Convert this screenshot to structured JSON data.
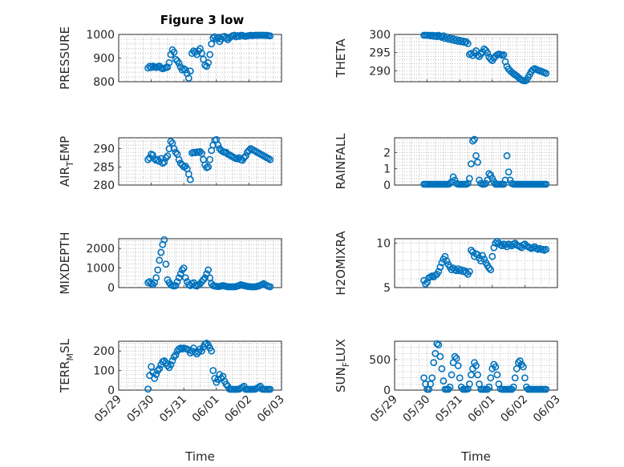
{
  "figure_title": "Figure 3 low",
  "colors": {
    "marker": "#0072BD",
    "axis": "#262626",
    "grid": "#b0b0b0"
  },
  "chart_data": [
    {
      "type": "scatter",
      "ylabel": "PRESSURE",
      "ylabel_sub": "",
      "xlim": [
        "05/29",
        "06/03"
      ],
      "ylim": [
        800,
        1000
      ],
      "yticks": [
        800,
        900,
        1000
      ],
      "xtick_labels": [],
      "xlabel": "",
      "grid": true,
      "x": [
        0.9,
        0.95,
        1.0,
        1.05,
        1.1,
        1.15,
        1.2,
        1.25,
        1.3,
        1.35,
        1.4,
        1.45,
        1.5,
        1.55,
        1.6,
        1.65,
        1.7,
        1.75,
        1.8,
        1.85,
        1.9,
        1.95,
        2.0,
        2.05,
        2.1,
        2.15,
        2.2,
        2.25,
        2.3,
        2.35,
        2.4,
        2.45,
        2.5,
        2.55,
        2.6,
        2.65,
        2.7,
        2.75,
        2.8,
        2.85,
        2.9,
        2.95,
        3.0,
        3.05,
        3.1,
        3.15,
        3.2,
        3.25,
        3.3,
        3.35,
        3.4,
        3.45,
        3.5,
        3.55,
        3.6,
        3.65,
        3.7,
        3.75,
        3.8,
        3.85,
        3.9,
        3.95,
        4.0,
        4.05,
        4.1,
        4.15,
        4.2,
        4.25,
        4.3,
        4.35,
        4.4,
        4.45,
        4.5,
        4.55,
        4.6,
        4.65
      ],
      "y": [
        858,
        865,
        860,
        866,
        862,
        860,
        864,
        866,
        858,
        855,
        857,
        860,
        862,
        880,
        915,
        935,
        925,
        895,
        888,
        878,
        862,
        850,
        855,
        850,
        835,
        815,
        845,
        920,
        930,
        925,
        915,
        930,
        940,
        920,
        895,
        870,
        865,
        880,
        915,
        960,
        985,
        990,
        980,
        985,
        970,
        980,
        990,
        992,
        985,
        978,
        985,
        990,
        995,
        998,
        990,
        995,
        992,
        998,
        996,
        993,
        992,
        994,
        995,
        997,
        995,
        996,
        998,
        1000,
        999,
        997,
        998,
        997,
        996,
        998,
        995,
        994
      ]
    },
    {
      "type": "scatter",
      "ylabel": "THETA",
      "ylabel_sub": "",
      "xlim": [
        "05/29",
        "06/03"
      ],
      "ylim": [
        287,
        300
      ],
      "yticks": [
        290,
        295,
        300
      ],
      "xtick_labels": [],
      "xlabel": "",
      "grid": true,
      "x": [
        0.9,
        0.95,
        1.0,
        1.05,
        1.1,
        1.15,
        1.2,
        1.25,
        1.3,
        1.35,
        1.4,
        1.45,
        1.5,
        1.55,
        1.6,
        1.65,
        1.7,
        1.75,
        1.8,
        1.85,
        1.9,
        1.95,
        2.0,
        2.05,
        2.1,
        2.15,
        2.2,
        2.25,
        2.3,
        2.35,
        2.4,
        2.45,
        2.5,
        2.55,
        2.6,
        2.65,
        2.7,
        2.75,
        2.8,
        2.85,
        2.9,
        2.95,
        3.0,
        3.05,
        3.1,
        3.15,
        3.2,
        3.25,
        3.3,
        3.35,
        3.4,
        3.45,
        3.5,
        3.55,
        3.6,
        3.65,
        3.7,
        3.75,
        3.8,
        3.85,
        3.9,
        3.95,
        4.0,
        4.05,
        4.1,
        4.15,
        4.2,
        4.25,
        4.3,
        4.35,
        4.4,
        4.45,
        4.5,
        4.55,
        4.6,
        4.65
      ],
      "y": [
        300,
        300.2,
        299.8,
        300.1,
        299.6,
        299.9,
        299.5,
        299.7,
        299.4,
        299.8,
        299.5,
        299.2,
        299.6,
        298.9,
        299.3,
        298.7,
        299.0,
        298.5,
        298.8,
        298.3,
        298.6,
        298.1,
        298.4,
        298.0,
        298.2,
        297.8,
        298.0,
        297.5,
        294.5,
        294.8,
        294.2,
        294.9,
        295.5,
        294.3,
        293.9,
        294.6,
        295.2,
        296.0,
        295.6,
        294.9,
        293.8,
        293.2,
        292.8,
        293.5,
        294.0,
        294.4,
        294.6,
        294.5,
        294.3,
        294.4,
        292.5,
        291.2,
        290.5,
        290.0,
        289.6,
        289.2,
        288.9,
        288.6,
        288.2,
        287.8,
        287.5,
        287.3,
        287.0,
        287.4,
        288.2,
        289.0,
        289.8,
        290.3,
        290.6,
        290.4,
        290.2,
        290.0,
        289.9,
        289.7,
        289.5,
        289.3
      ]
    },
    {
      "type": "scatter",
      "ylabel": "AIR",
      "ylabel_sub": "T",
      "ylabel_suffix": "EMP",
      "xlim": [
        "05/29",
        "06/03"
      ],
      "ylim": [
        280,
        293
      ],
      "yticks": [
        280,
        285,
        290
      ],
      "xtick_labels": [],
      "xlabel": "",
      "grid": true,
      "x": [
        0.9,
        0.95,
        1.0,
        1.05,
        1.1,
        1.15,
        1.2,
        1.25,
        1.3,
        1.35,
        1.4,
        1.45,
        1.5,
        1.55,
        1.6,
        1.65,
        1.7,
        1.75,
        1.8,
        1.85,
        1.9,
        1.95,
        2.0,
        2.05,
        2.1,
        2.15,
        2.2,
        2.25,
        2.3,
        2.35,
        2.4,
        2.45,
        2.5,
        2.55,
        2.6,
        2.65,
        2.7,
        2.75,
        2.8,
        2.85,
        2.9,
        2.95,
        3.0,
        3.05,
        3.1,
        3.15,
        3.2,
        3.25,
        3.3,
        3.35,
        3.4,
        3.45,
        3.5,
        3.55,
        3.6,
        3.65,
        3.7,
        3.75,
        3.8,
        3.85,
        3.9,
        3.95,
        4.0,
        4.05,
        4.1,
        4.15,
        4.2,
        4.25,
        4.3,
        4.35,
        4.4,
        4.45,
        4.5,
        4.55,
        4.6,
        4.65
      ],
      "y": [
        287,
        287.5,
        288.5,
        288.2,
        287.2,
        286.8,
        287.0,
        286.5,
        287.3,
        286.0,
        286.3,
        287.5,
        288.0,
        290.0,
        292.0,
        291.5,
        290.0,
        289.0,
        288.5,
        287.0,
        286.0,
        285.5,
        285.0,
        285.2,
        284.5,
        283.0,
        281.5,
        288.8,
        289.0,
        288.9,
        289.1,
        289.0,
        289.2,
        288.7,
        287.0,
        285.5,
        284.8,
        285.0,
        287.0,
        289.5,
        291.0,
        292.3,
        292.5,
        291.0,
        290.0,
        289.5,
        289.2,
        289.0,
        289.0,
        288.5,
        288.3,
        288.0,
        287.8,
        287.5,
        287.3,
        287.2,
        287.5,
        287.0,
        286.8,
        287.5,
        288.0,
        289.0,
        289.5,
        290.0,
        289.8,
        289.5,
        289.3,
        289.0,
        288.8,
        288.5,
        288.3,
        288.0,
        287.8,
        287.5,
        287.3,
        287.0
      ]
    },
    {
      "type": "scatter",
      "ylabel": "RAINFALL",
      "ylabel_sub": "",
      "xlim": [
        "05/29",
        "06/03"
      ],
      "ylim": [
        0,
        2.9
      ],
      "yticks": [
        0,
        1,
        2
      ],
      "xtick_labels": [],
      "xlabel": "",
      "grid": true,
      "x": [
        0.9,
        0.95,
        1.0,
        1.05,
        1.1,
        1.15,
        1.2,
        1.25,
        1.3,
        1.35,
        1.4,
        1.45,
        1.5,
        1.55,
        1.6,
        1.65,
        1.7,
        1.75,
        1.8,
        1.85,
        1.9,
        1.95,
        2.0,
        2.05,
        2.1,
        2.15,
        2.2,
        2.25,
        2.3,
        2.35,
        2.4,
        2.45,
        2.5,
        2.55,
        2.6,
        2.65,
        2.7,
        2.75,
        2.8,
        2.85,
        2.9,
        2.95,
        3.0,
        3.05,
        3.1,
        3.15,
        3.2,
        3.25,
        3.3,
        3.35,
        3.4,
        3.45,
        3.5,
        3.55,
        3.6,
        3.65,
        3.7,
        3.75,
        3.8,
        3.85,
        3.9,
        3.95,
        4.0,
        4.05,
        4.1,
        4.15,
        4.2,
        4.25,
        4.3,
        4.35,
        4.4,
        4.45,
        4.5,
        4.55,
        4.6,
        4.65
      ],
      "y": [
        0,
        0,
        0,
        0,
        0,
        0,
        0,
        0,
        0,
        0,
        0,
        0,
        0,
        0,
        0,
        0,
        0.1,
        0.2,
        0.5,
        0.3,
        0.1,
        0,
        0,
        0,
        0,
        0,
        0,
        0.1,
        0.4,
        1.3,
        2.7,
        2.8,
        1.8,
        1.4,
        0.3,
        0.1,
        0,
        0,
        0.1,
        0.3,
        0.7,
        0.6,
        0.4,
        0.2,
        0,
        0,
        0,
        0,
        0,
        0,
        0.3,
        1.8,
        0.8,
        0.3,
        0.1,
        0,
        0,
        0,
        0,
        0,
        0,
        0,
        0,
        0,
        0,
        0,
        0,
        0,
        0,
        0,
        0,
        0,
        0,
        0,
        0,
        0
      ]
    },
    {
      "type": "scatter",
      "ylabel": "MIXDEPTH",
      "ylabel_sub": "",
      "xlim": [
        "05/29",
        "06/03"
      ],
      "ylim": [
        0,
        2500
      ],
      "yticks": [
        0,
        1000,
        2000
      ],
      "xtick_labels": [],
      "xlabel": "",
      "grid": true,
      "x": [
        0.9,
        0.95,
        1.0,
        1.05,
        1.1,
        1.15,
        1.2,
        1.25,
        1.3,
        1.35,
        1.4,
        1.45,
        1.5,
        1.55,
        1.6,
        1.65,
        1.7,
        1.75,
        1.8,
        1.85,
        1.9,
        1.95,
        2.0,
        2.05,
        2.1,
        2.15,
        2.2,
        2.25,
        2.3,
        2.35,
        2.4,
        2.45,
        2.5,
        2.55,
        2.6,
        2.65,
        2.7,
        2.75,
        2.8,
        2.85,
        2.9,
        2.95,
        3.0,
        3.05,
        3.1,
        3.15,
        3.2,
        3.25,
        3.3,
        3.35,
        3.4,
        3.45,
        3.5,
        3.55,
        3.6,
        3.65,
        3.7,
        3.75,
        3.8,
        3.85,
        3.9,
        3.95,
        4.0,
        4.05,
        4.1,
        4.15,
        4.2,
        4.25,
        4.3,
        4.35,
        4.4,
        4.45,
        4.5,
        4.55,
        4.6,
        4.65
      ],
      "y": [
        250,
        300,
        200,
        150,
        250,
        500,
        900,
        1400,
        1800,
        2200,
        2450,
        1200,
        400,
        250,
        150,
        100,
        80,
        100,
        300,
        500,
        700,
        900,
        1000,
        500,
        300,
        150,
        100,
        200,
        250,
        100,
        80,
        150,
        200,
        300,
        400,
        500,
        700,
        900,
        500,
        200,
        100,
        80,
        60,
        50,
        60,
        80,
        100,
        80,
        60,
        40,
        30,
        20,
        20,
        30,
        50,
        80,
        100,
        150,
        120,
        100,
        80,
        60,
        50,
        40,
        30,
        30,
        40,
        60,
        80,
        120,
        150,
        200,
        150,
        100,
        60,
        40
      ]
    },
    {
      "type": "scatter",
      "ylabel": "H2OMIXRA",
      "ylabel_sub": "",
      "xlim": [
        "05/29",
        "06/03"
      ],
      "ylim": [
        5,
        10.5
      ],
      "yticks": [
        5,
        10
      ],
      "xtick_labels": [],
      "xlabel": "",
      "grid": true,
      "x": [
        0.9,
        0.95,
        1.0,
        1.05,
        1.1,
        1.15,
        1.2,
        1.25,
        1.3,
        1.35,
        1.4,
        1.45,
        1.5,
        1.55,
        1.6,
        1.65,
        1.7,
        1.75,
        1.8,
        1.85,
        1.9,
        1.95,
        2.0,
        2.05,
        2.1,
        2.15,
        2.2,
        2.25,
        2.3,
        2.35,
        2.4,
        2.45,
        2.5,
        2.55,
        2.6,
        2.65,
        2.7,
        2.75,
        2.8,
        2.85,
        2.9,
        2.95,
        3.0,
        3.05,
        3.1,
        3.15,
        3.2,
        3.25,
        3.3,
        3.35,
        3.4,
        3.45,
        3.5,
        3.55,
        3.6,
        3.65,
        3.7,
        3.75,
        3.8,
        3.85,
        3.9,
        3.95,
        4.0,
        4.05,
        4.1,
        4.15,
        4.2,
        4.25,
        4.3,
        4.35,
        4.4,
        4.45,
        4.5,
        4.55,
        4.6,
        4.65
      ],
      "y": [
        5.8,
        5.4,
        5.6,
        6.1,
        6.2,
        6.3,
        6.2,
        6.4,
        6.5,
        6.8,
        7.3,
        7.8,
        8.2,
        8.5,
        8.0,
        7.6,
        7.3,
        7.0,
        7.2,
        7.0,
        6.9,
        7.1,
        6.9,
        7.0,
        6.8,
        6.9,
        6.7,
        6.5,
        6.8,
        9.2,
        9.0,
        8.5,
        8.8,
        8.7,
        8.3,
        8.0,
        8.6,
        8.2,
        7.8,
        7.5,
        7.2,
        7.0,
        8.5,
        9.5,
        10.0,
        10.2,
        10.0,
        9.8,
        9.7,
        9.9,
        9.8,
        9.6,
        9.9,
        9.8,
        9.7,
        9.9,
        10.0,
        9.8,
        9.7,
        9.6,
        9.5,
        9.8,
        9.9,
        9.7,
        9.6,
        9.5,
        9.4,
        9.5,
        9.6,
        9.4,
        9.3,
        9.4,
        9.3,
        9.3,
        9.2,
        9.3
      ]
    },
    {
      "type": "scatter",
      "ylabel": "TERR",
      "ylabel_sub": "M",
      "ylabel_suffix": "SL",
      "xlim": [
        "05/29",
        "06/03"
      ],
      "ylim": [
        0,
        250
      ],
      "yticks": [
        0,
        100,
        200
      ],
      "xtick_labels": [
        "05/29",
        "05/30",
        "05/31",
        "06/01",
        "06/02",
        "06/03"
      ],
      "xlabel": "Time",
      "grid": true,
      "x": [
        0.9,
        0.95,
        1.0,
        1.05,
        1.1,
        1.15,
        1.2,
        1.25,
        1.3,
        1.35,
        1.4,
        1.45,
        1.5,
        1.55,
        1.6,
        1.65,
        1.7,
        1.75,
        1.8,
        1.85,
        1.9,
        1.95,
        2.0,
        2.05,
        2.1,
        2.15,
        2.2,
        2.25,
        2.3,
        2.35,
        2.4,
        2.45,
        2.5,
        2.55,
        2.6,
        2.65,
        2.7,
        2.75,
        2.8,
        2.85,
        2.9,
        2.95,
        3.0,
        3.05,
        3.1,
        3.15,
        3.2,
        3.25,
        3.3,
        3.35,
        3.4,
        3.45,
        3.5,
        3.55,
        3.6,
        3.65,
        3.7,
        3.75,
        3.8,
        3.85,
        3.9,
        3.95,
        4.0,
        4.05,
        4.1,
        4.15,
        4.2,
        4.25,
        4.3,
        4.35,
        4.4,
        4.45,
        4.5,
        4.55,
        4.6,
        4.65
      ],
      "y": [
        5,
        75,
        120,
        90,
        60,
        80,
        100,
        110,
        130,
        145,
        150,
        140,
        125,
        115,
        130,
        150,
        170,
        180,
        200,
        210,
        215,
        210,
        215,
        212,
        210,
        205,
        190,
        200,
        215,
        195,
        185,
        195,
        210,
        200,
        220,
        235,
        240,
        230,
        215,
        200,
        100,
        60,
        40,
        55,
        80,
        60,
        70,
        45,
        30,
        20,
        5,
        0,
        0,
        0,
        0,
        0,
        5,
        10,
        15,
        20,
        0,
        0,
        0,
        0,
        0,
        0,
        5,
        10,
        15,
        20,
        5,
        0,
        0,
        0,
        0,
        0
      ]
    },
    {
      "type": "scatter",
      "ylabel": "SUN",
      "ylabel_sub": "F",
      "ylabel_suffix": "LUX",
      "xlim": [
        "05/29",
        "06/03"
      ],
      "ylim": [
        0,
        800
      ],
      "yticks": [
        0,
        500
      ],
      "xtick_labels": [
        "05/29",
        "05/30",
        "05/31",
        "06/01",
        "06/02",
        "06/03"
      ],
      "xlabel": "Time",
      "grid": true,
      "x": [
        0.9,
        0.95,
        1.0,
        1.05,
        1.1,
        1.15,
        1.2,
        1.25,
        1.3,
        1.35,
        1.4,
        1.45,
        1.5,
        1.55,
        1.6,
        1.65,
        1.7,
        1.75,
        1.8,
        1.85,
        1.9,
        1.95,
        2.0,
        2.05,
        2.1,
        2.15,
        2.2,
        2.25,
        2.3,
        2.35,
        2.4,
        2.45,
        2.5,
        2.55,
        2.6,
        2.65,
        2.7,
        2.75,
        2.8,
        2.85,
        2.9,
        2.95,
        3.0,
        3.05,
        3.1,
        3.15,
        3.2,
        3.25,
        3.3,
        3.35,
        3.4,
        3.45,
        3.5,
        3.55,
        3.6,
        3.65,
        3.7,
        3.75,
        3.8,
        3.85,
        3.9,
        3.95,
        4.0,
        4.05,
        4.1,
        4.15,
        4.2,
        4.25,
        4.3,
        4.35,
        4.4,
        4.45,
        4.5,
        4.55,
        4.6,
        4.65
      ],
      "y": [
        200,
        100,
        0,
        0,
        100,
        200,
        450,
        600,
        760,
        740,
        550,
        350,
        150,
        0,
        0,
        0,
        50,
        250,
        450,
        550,
        520,
        400,
        200,
        50,
        0,
        0,
        0,
        20,
        100,
        250,
        350,
        450,
        400,
        250,
        100,
        0,
        0,
        0,
        0,
        10,
        50,
        200,
        350,
        420,
        380,
        250,
        100,
        20,
        0,
        0,
        0,
        0,
        0,
        0,
        0,
        50,
        200,
        350,
        450,
        480,
        420,
        380,
        200,
        50,
        0,
        0,
        0,
        0,
        0,
        0,
        0,
        0,
        0,
        0,
        0,
        0
      ]
    }
  ]
}
